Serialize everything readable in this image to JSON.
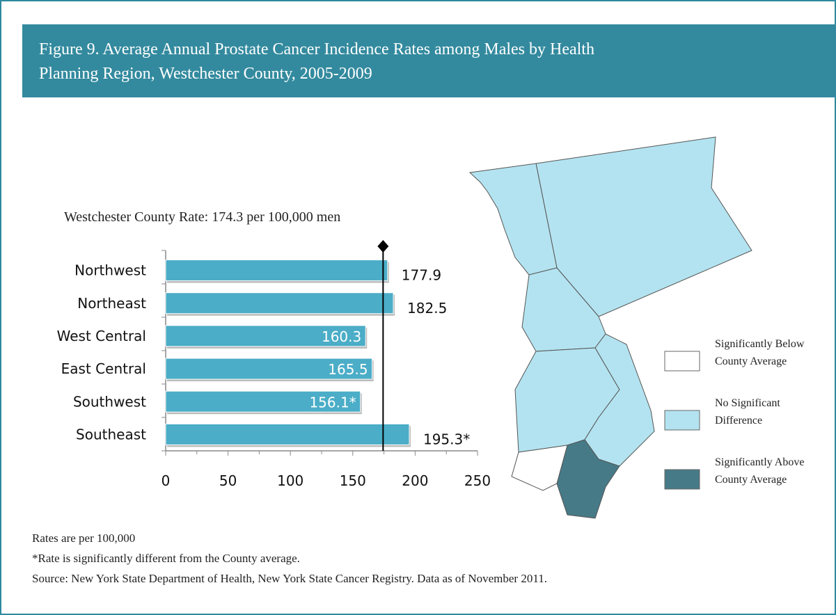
{
  "chart_data": {
    "type": "bar",
    "orientation": "horizontal",
    "title": "Figure  9. Average Annual Prostate Cancer Incidence Rates among Males by Health Planning Region, Westchester County, 2005-2009",
    "subtitle": "Westchester County Rate: 174.3 per 100,000 men",
    "county_rate": 174.3,
    "categories": [
      "Northwest",
      "Northeast",
      "West Central",
      "East Central",
      "Southwest",
      "Southeast"
    ],
    "values": [
      177.9,
      182.5,
      160.3,
      165.5,
      156.1,
      195.3
    ],
    "value_labels": [
      "177.9",
      "182.5",
      "160.3",
      "165.5",
      "156.1*",
      "195.3*"
    ],
    "color": "#4badc7",
    "xlim": [
      0,
      250
    ],
    "xticks": [
      0,
      50,
      100,
      150,
      200,
      250
    ],
    "map_legend": [
      {
        "label": "Significantly Below County Average",
        "color": "#ffffff"
      },
      {
        "label": "No Significant Difference",
        "color": "#b3e3f0"
      },
      {
        "label": "Significantly Above County Average",
        "color": "#467a87"
      }
    ],
    "notes": [
      "Rates are per 100,000",
      "*Rate is significantly different from the County average.",
      "Source: New York State Department of Health, New York State Cancer Registry. Data as of November 2011."
    ]
  }
}
